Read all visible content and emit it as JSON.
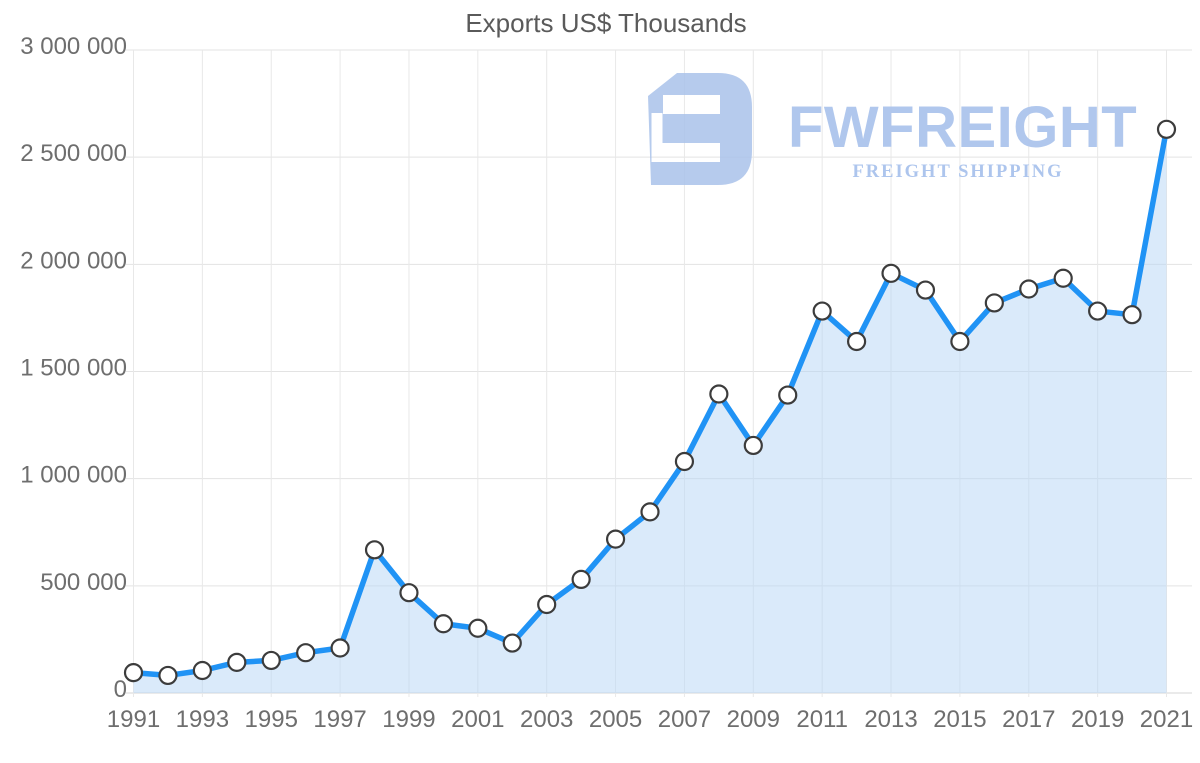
{
  "page": {
    "title": "Exports US$ Thousands"
  },
  "watermark": {
    "brand": "FWFREIGHT",
    "tagline": "FREIGHT SHIPPING",
    "icon": "fwfreight-logo-icon",
    "color": "#a9c2ec"
  },
  "chart_data": {
    "type": "line",
    "title": "Exports US$ Thousands",
    "xlabel": "",
    "ylabel": "",
    "x": [
      1991,
      1992,
      1993,
      1994,
      1995,
      1996,
      1997,
      1998,
      1999,
      2000,
      2001,
      2002,
      2003,
      2004,
      2005,
      2006,
      2007,
      2008,
      2009,
      2010,
      2011,
      2012,
      2013,
      2014,
      2015,
      2016,
      2017,
      2018,
      2019,
      2020,
      2021
    ],
    "values": [
      95000,
      82000,
      105000,
      143000,
      152000,
      188000,
      210000,
      668000,
      468000,
      323000,
      302000,
      233000,
      413000,
      530000,
      718000,
      845000,
      1080000,
      1395000,
      1155000,
      1390000,
      1782000,
      1640000,
      1958000,
      1880000,
      1640000,
      1820000,
      1885000,
      1935000,
      1782000,
      1765000,
      2630000
    ],
    "x_tick_labels": [
      "1991",
      "1993",
      "1995",
      "1997",
      "1999",
      "2001",
      "2003",
      "2005",
      "2007",
      "2009",
      "2011",
      "2013",
      "2015",
      "2017",
      "2019",
      "2021"
    ],
    "y_ticks": [
      0,
      500000,
      1000000,
      1500000,
      2000000,
      2500000,
      3000000
    ],
    "y_tick_labels": [
      "0",
      "500 000",
      "1 000 000",
      "1 500 000",
      "2 000 000",
      "2 500 000",
      "3 000 000"
    ],
    "ylim": [
      0,
      3000000
    ],
    "xlim": [
      1991,
      2021
    ],
    "grid": true,
    "legend_position": "none",
    "marker": "circle",
    "colors": {
      "line": "#2093f5",
      "area_fill": "rgba(182,214,246,0.5)",
      "marker_fill": "#ffffff",
      "marker_stroke": "#3c3c3c",
      "grid": "#e3e3e3",
      "grid_zero": "#d6d6d6",
      "axis_text": "#6e6e6e",
      "title_text": "#5a5a5a"
    }
  }
}
